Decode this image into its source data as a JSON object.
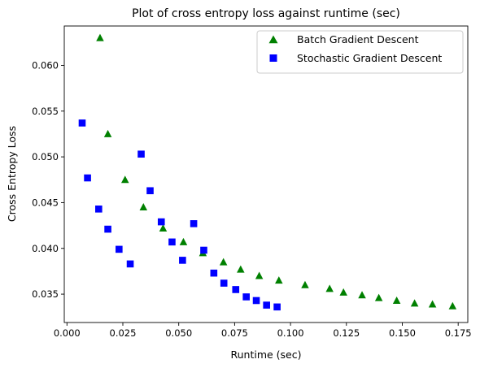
{
  "chart_data": {
    "type": "scatter",
    "title": "Plot of cross entropy loss against runtime (sec)",
    "xlabel": "Runtime (sec)",
    "ylabel": "Cross Entropy Loss",
    "xlim": [
      -0.0012,
      0.1793
    ],
    "ylim": [
      0.0319,
      0.0643
    ],
    "xticks": [
      0.0,
      0.025,
      0.05,
      0.075,
      0.1,
      0.125,
      0.15,
      0.175
    ],
    "xtick_labels": [
      "0.000",
      "0.025",
      "0.050",
      "0.075",
      "0.100",
      "0.125",
      "0.150",
      "0.175"
    ],
    "yticks": [
      0.035,
      0.04,
      0.045,
      0.05,
      0.055,
      0.06
    ],
    "ytick_labels": [
      "0.035",
      "0.040",
      "0.045",
      "0.050",
      "0.055",
      "0.060"
    ],
    "grid": false,
    "legend_position": "top-right",
    "series": [
      {
        "name": "Batch Gradient Descent",
        "marker": "triangle",
        "color": "#008000",
        "points": [
          {
            "x": 0.0148,
            "y": 0.063
          },
          {
            "x": 0.0183,
            "y": 0.0525
          },
          {
            "x": 0.026,
            "y": 0.0475
          },
          {
            "x": 0.0342,
            "y": 0.0445
          },
          {
            "x": 0.043,
            "y": 0.0422
          },
          {
            "x": 0.0521,
            "y": 0.0407
          },
          {
            "x": 0.0608,
            "y": 0.0395
          },
          {
            "x": 0.07,
            "y": 0.0385
          },
          {
            "x": 0.0777,
            "y": 0.0377
          },
          {
            "x": 0.086,
            "y": 0.037
          },
          {
            "x": 0.0948,
            "y": 0.0365
          },
          {
            "x": 0.1065,
            "y": 0.036
          },
          {
            "x": 0.1175,
            "y": 0.0356
          },
          {
            "x": 0.1237,
            "y": 0.0352
          },
          {
            "x": 0.132,
            "y": 0.0349
          },
          {
            "x": 0.1395,
            "y": 0.0346
          },
          {
            "x": 0.1475,
            "y": 0.0343
          },
          {
            "x": 0.1555,
            "y": 0.034
          },
          {
            "x": 0.1635,
            "y": 0.0339
          },
          {
            "x": 0.1725,
            "y": 0.0337
          }
        ]
      },
      {
        "name": "Stochastic Gradient Descent",
        "marker": "square",
        "color": "#0000ff",
        "points": [
          {
            "x": 0.0068,
            "y": 0.0537
          },
          {
            "x": 0.0092,
            "y": 0.0477
          },
          {
            "x": 0.0142,
            "y": 0.0443
          },
          {
            "x": 0.0183,
            "y": 0.0421
          },
          {
            "x": 0.0233,
            "y": 0.0399
          },
          {
            "x": 0.0283,
            "y": 0.0383
          },
          {
            "x": 0.0332,
            "y": 0.0503
          },
          {
            "x": 0.0372,
            "y": 0.0463
          },
          {
            "x": 0.0422,
            "y": 0.0429
          },
          {
            "x": 0.047,
            "y": 0.0407
          },
          {
            "x": 0.0517,
            "y": 0.0387
          },
          {
            "x": 0.0567,
            "y": 0.0427
          },
          {
            "x": 0.0612,
            "y": 0.0398
          },
          {
            "x": 0.0657,
            "y": 0.0373
          },
          {
            "x": 0.0702,
            "y": 0.0362
          },
          {
            "x": 0.0755,
            "y": 0.0355
          },
          {
            "x": 0.0802,
            "y": 0.0347
          },
          {
            "x": 0.0847,
            "y": 0.0343
          },
          {
            "x": 0.0893,
            "y": 0.0338
          },
          {
            "x": 0.094,
            "y": 0.0336
          }
        ]
      }
    ]
  }
}
